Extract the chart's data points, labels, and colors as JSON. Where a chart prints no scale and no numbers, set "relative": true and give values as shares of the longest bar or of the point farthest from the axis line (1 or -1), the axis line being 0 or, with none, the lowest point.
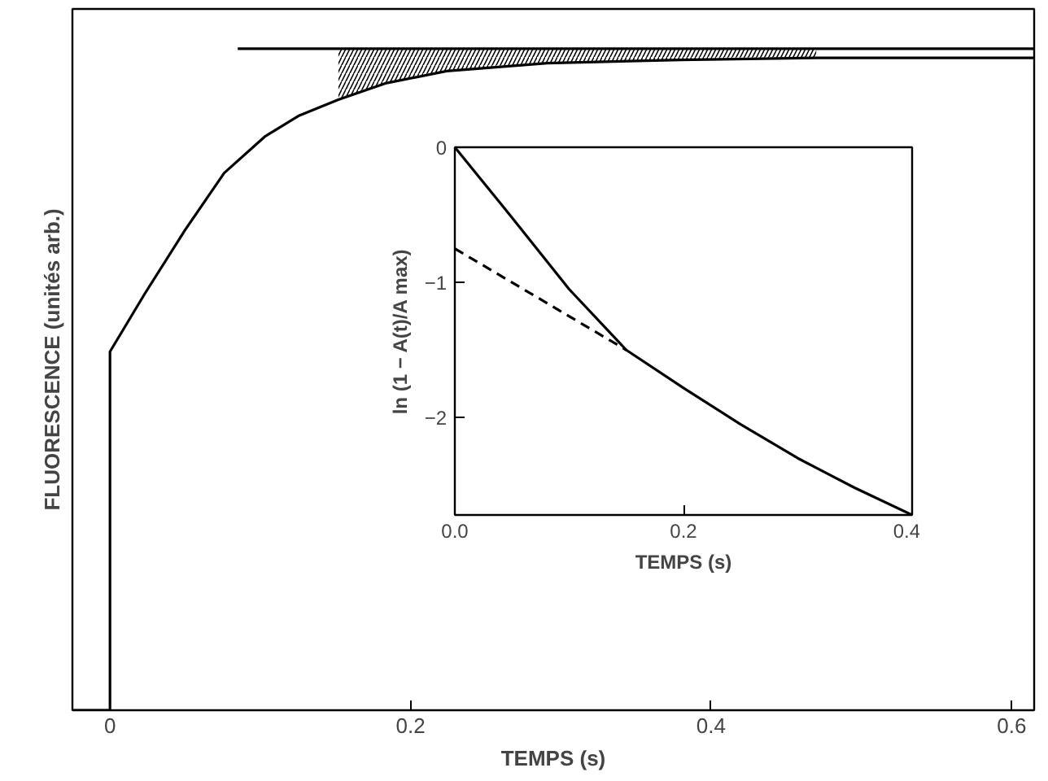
{
  "chart_data": [
    {
      "type": "line",
      "xlabel": "TEMPS (s)",
      "ylabel": "FLUORESCENCE (unités arb.)",
      "relative": true,
      "xlim": [
        -0.025,
        0.615
      ],
      "xticks": [
        0,
        0.2,
        0.4,
        0.6
      ],
      "grid": false,
      "series": [
        {
          "color": "#000000",
          "x": [
            -0.025,
            0,
            0,
            0.023,
            0.05,
            0.076,
            0.103,
            0.126,
            0.152,
            0.184,
            0.224,
            0.291,
            0.38,
            0.47,
            0.615
          ],
          "values": [
            0,
            0,
            0.542,
            0.629,
            0.726,
            0.812,
            0.867,
            0.899,
            0.923,
            0.948,
            0.966,
            0.978,
            0.983,
            0.986,
            0.986
          ],
          "lower": [
            null,
            null,
            null,
            null,
            null,
            null,
            null,
            null,
            0.923,
            0.948,
            0.966,
            0.978,
            0.983,
            0.986,
            null
          ],
          "upper": [
            null,
            null,
            null,
            null,
            null,
            null,
            null,
            null,
            1,
            1,
            1,
            1,
            1,
            1,
            null
          ]
        },
        {
          "color": "#000000",
          "x": [
            0.085,
            0.615
          ],
          "values": [
            1,
            1
          ]
        }
      ]
    },
    {
      "type": "line",
      "xlabel": "TEMPS (s)",
      "ylabel": "ln (1 − A(t)/A max)",
      "xlim": [
        0,
        0.4
      ],
      "xticks": [
        {
          "value": 0,
          "label": "0.0"
        },
        0.2,
        0.4
      ],
      "ylim": [
        -2.72,
        0
      ],
      "yticks": [
        0,
        -1,
        -2
      ],
      "grid": false,
      "series": [
        {
          "color": "#000000",
          "line_style": "solid",
          "x": [
            0,
            0.05,
            0.1,
            0.15,
            0.2,
            0.25,
            0.3,
            0.35,
            0.4
          ],
          "values": [
            0,
            -0.52,
            -1.05,
            -1.5,
            -1.78,
            -2.05,
            -2.3,
            -2.52,
            -2.72
          ]
        },
        {
          "color": "#000000",
          "line_style": "dashed",
          "x": [
            0,
            0.15
          ],
          "values": [
            -0.75,
            -1.5
          ]
        }
      ]
    }
  ]
}
